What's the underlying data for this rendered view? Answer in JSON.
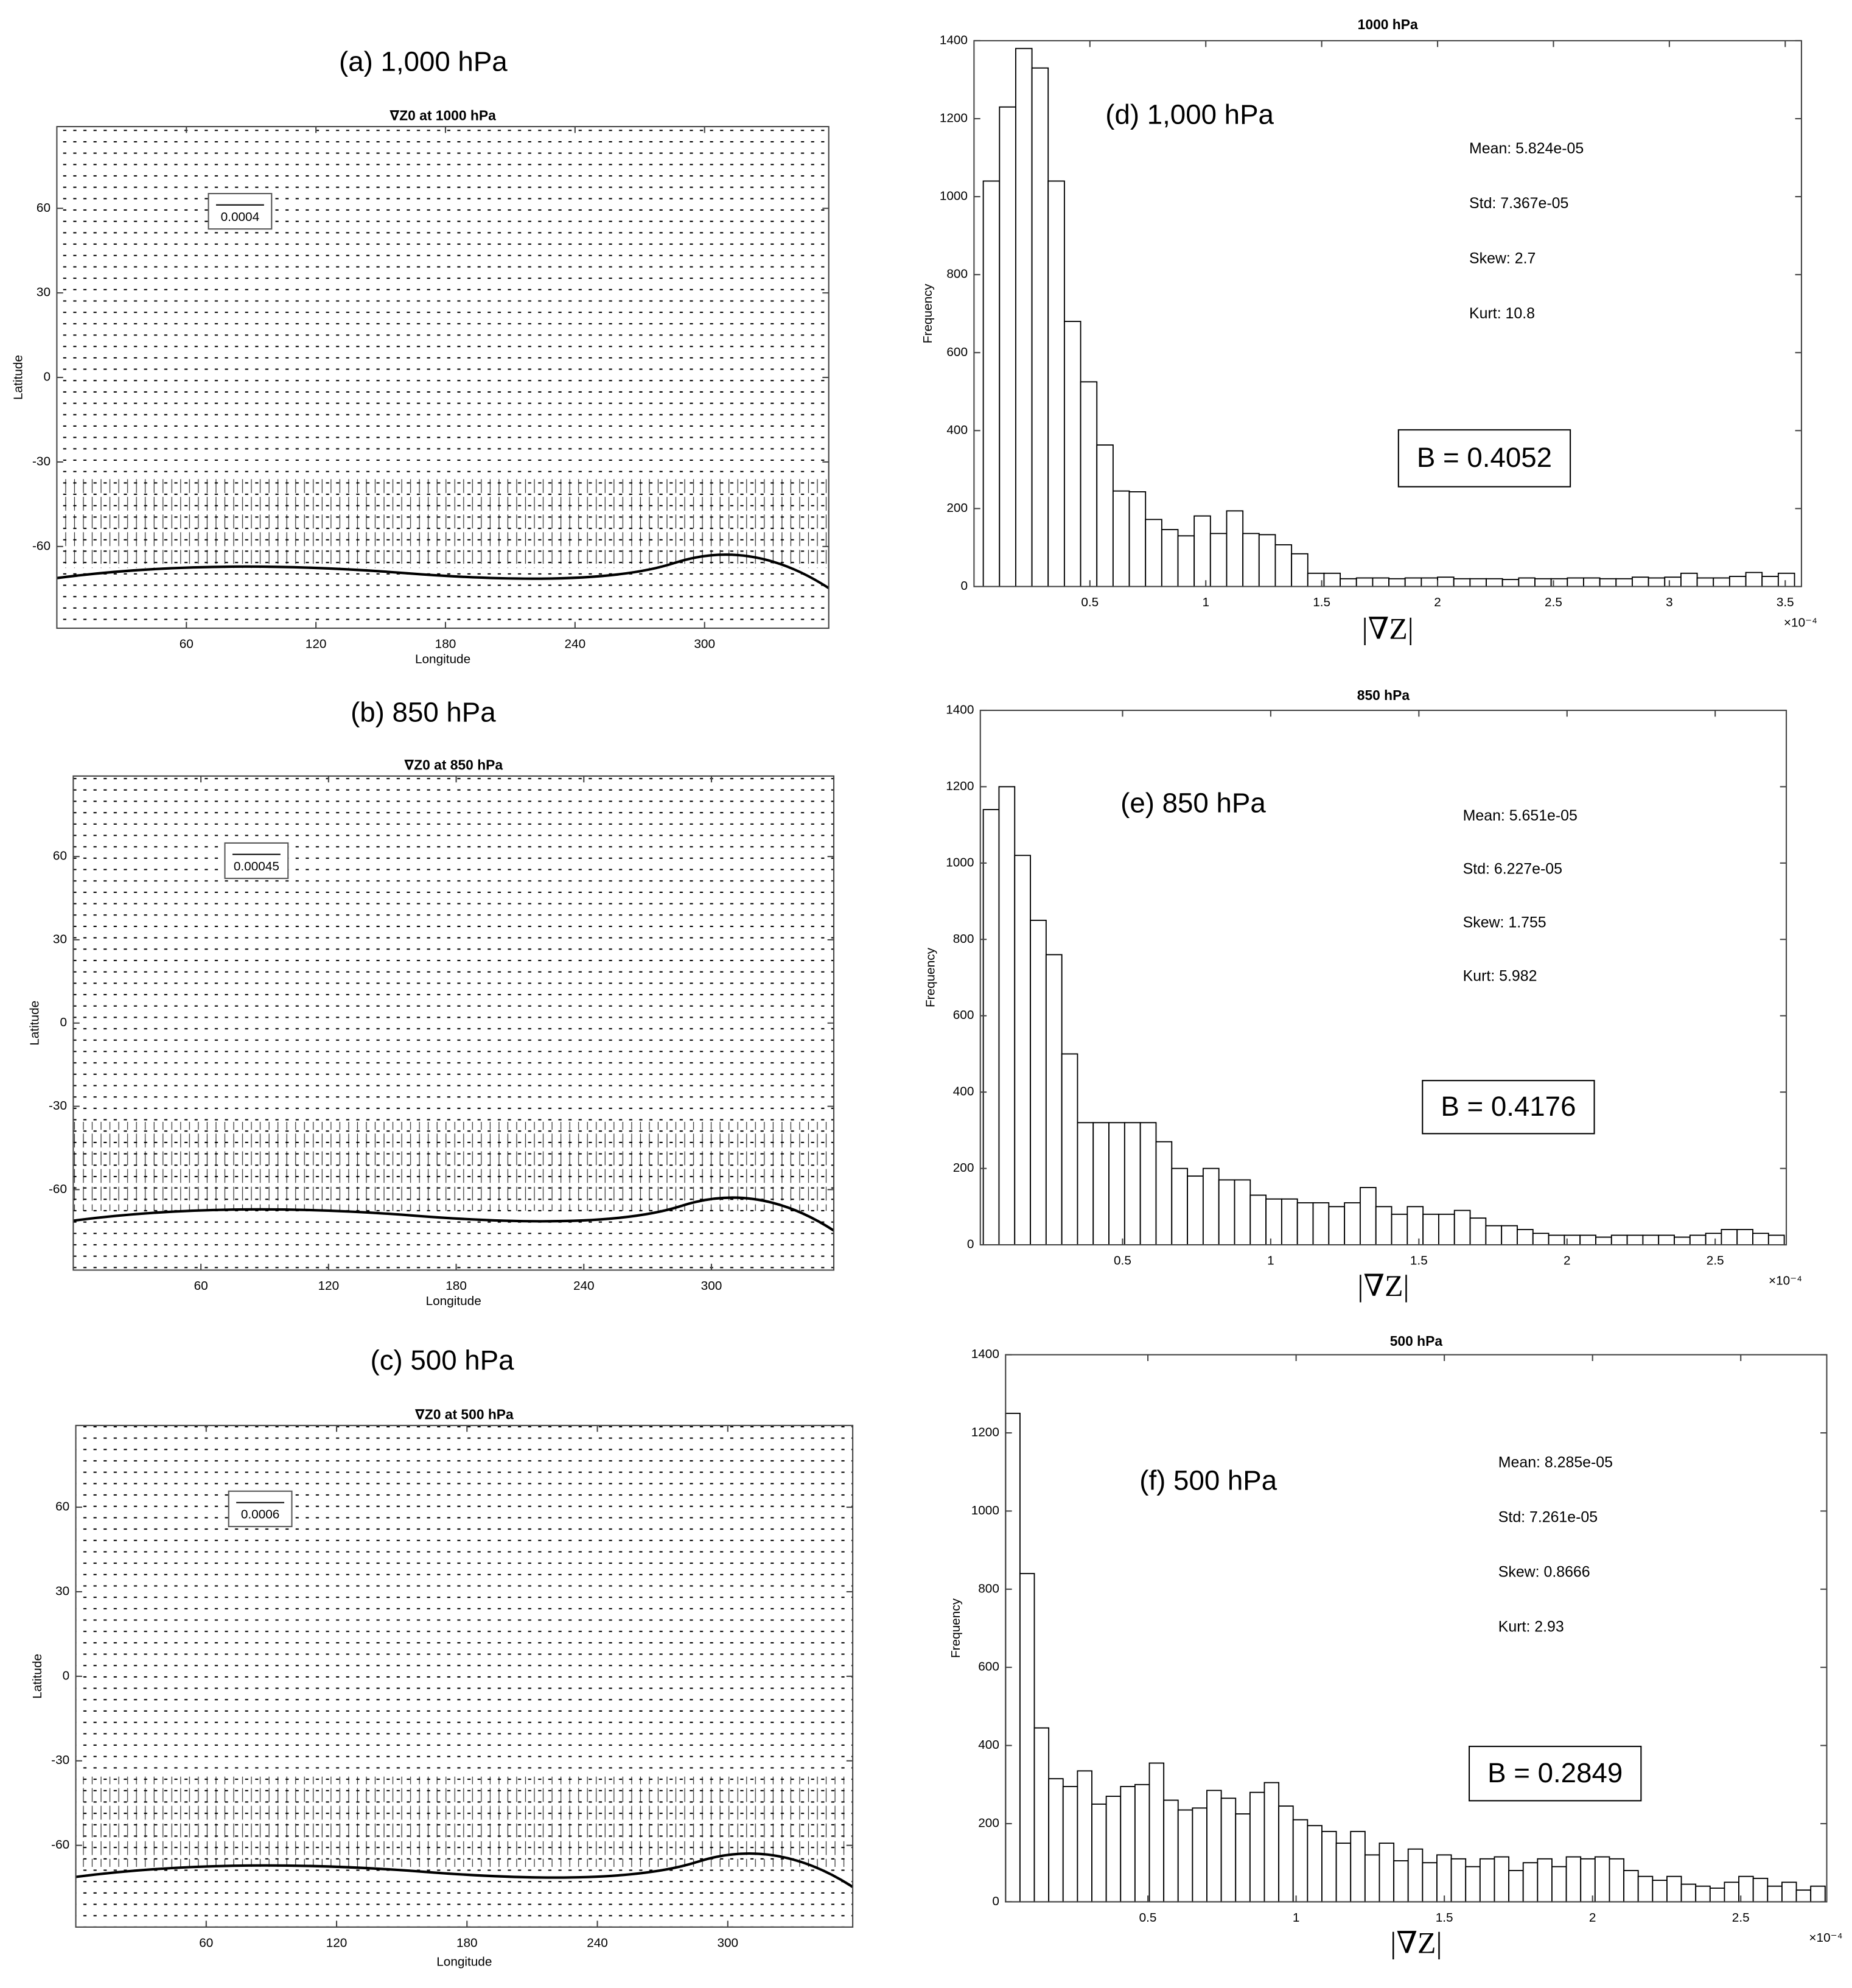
{
  "chart_data": [
    {
      "type": "quiver",
      "panel_label": "(a) 1,000 hPa",
      "title": "∇Z0 at 1000 hPa",
      "xlabel": "Longitude",
      "ylabel": "Latitude",
      "reference_label": "0.0004",
      "xlim": [
        0,
        357.5
      ],
      "xticks": [
        60,
        120,
        180,
        240,
        300
      ],
      "ylim": [
        -89,
        89
      ],
      "yticks": [
        -60,
        -30,
        0,
        30,
        60
      ]
    },
    {
      "type": "quiver",
      "panel_label": "(b)   850 hPa",
      "title": "∇Z0 at 850 hPa",
      "xlabel": "Longitude",
      "ylabel": "Latitude",
      "reference_label": "0.00045",
      "xlim": [
        0,
        357.5
      ],
      "xticks": [
        60,
        120,
        180,
        240,
        300
      ],
      "ylim": [
        -89,
        89
      ],
      "yticks": [
        -60,
        -30,
        0,
        30,
        60
      ]
    },
    {
      "type": "quiver",
      "panel_label": "(c)     500 hPa",
      "title": "∇Z0 at 500 hPa",
      "xlabel": "Longitude",
      "ylabel": "Latitude",
      "reference_label": "0.0006",
      "xlim": [
        0,
        357.5
      ],
      "xticks": [
        60,
        120,
        180,
        240,
        300
      ],
      "ylim": [
        -89,
        89
      ],
      "yticks": [
        -60,
        -30,
        0,
        30,
        60
      ]
    },
    {
      "type": "histogram",
      "title": "1000 hPa",
      "panel_label": "(d)   1,000 hPa",
      "xlabel": "|∇Z|",
      "ylabel": "Frequency",
      "x_multiplier": "×10⁻⁴",
      "stats": [
        "Mean: 5.824e-05",
        "Std: 7.367e-05",
        "Skew: 2.7",
        "Kurt: 10.8"
      ],
      "annotation": "B = 0.4052",
      "xlim": [
        0,
        3.57
      ],
      "xticks": [
        0.5,
        1,
        1.5,
        2,
        2.5,
        3,
        3.5
      ],
      "ylim": [
        0,
        1400
      ],
      "yticks": [
        0,
        200,
        400,
        600,
        800,
        1000,
        1200,
        1400
      ],
      "bins": [
        0.04,
        0.11,
        0.18,
        0.25,
        0.32,
        0.39,
        0.46,
        0.53,
        0.6,
        0.67,
        0.74,
        0.81,
        0.88,
        0.95,
        1.02,
        1.09,
        1.16,
        1.23,
        1.3,
        1.37,
        1.44,
        1.51,
        1.58,
        1.65,
        1.72,
        1.79,
        1.86,
        1.93,
        2,
        2.07,
        2.14,
        2.21,
        2.28,
        2.35,
        2.42,
        2.49,
        2.56,
        2.63,
        2.7,
        2.77,
        2.84,
        2.91,
        2.98,
        3.05,
        3.12,
        3.19,
        3.26,
        3.33,
        3.4,
        3.47,
        3.54
      ],
      "values": [
        1040,
        1230,
        1380,
        1330,
        1040,
        680,
        525,
        363,
        245,
        243,
        172,
        146,
        130,
        181,
        136,
        194,
        136,
        133,
        107,
        84,
        34,
        34,
        20,
        22,
        22,
        20,
        22,
        22,
        24,
        20,
        20,
        20,
        18,
        22,
        20,
        20,
        22,
        22,
        20,
        20,
        24,
        22,
        24,
        34,
        22,
        22,
        26,
        36,
        26,
        34
      ]
    },
    {
      "type": "histogram",
      "title": "850 hPa",
      "panel_label": "(e) 850 hPa",
      "xlabel": "|∇Z|",
      "ylabel": "Frequency",
      "x_multiplier": "×10⁻⁴",
      "stats": [
        "Mean: 5.651e-05",
        "Std: 6.227e-05",
        "Skew: 1.755",
        "Kurt: 5.982"
      ],
      "annotation": "B = 0.4176",
      "xlim": [
        0.02,
        2.74
      ],
      "xticks": [
        0.5,
        1,
        1.5,
        2,
        2.5
      ],
      "ylim": [
        0,
        1400
      ],
      "yticks": [
        0,
        200,
        400,
        600,
        800,
        1000,
        1200,
        1400
      ],
      "bins": [
        0.03,
        0.083,
        0.136,
        0.189,
        0.242,
        0.295,
        0.348,
        0.401,
        0.454,
        0.507,
        0.56,
        0.613,
        0.666,
        0.719,
        0.772,
        0.825,
        0.878,
        0.931,
        0.984,
        1.037,
        1.09,
        1.143,
        1.196,
        1.249,
        1.302,
        1.355,
        1.408,
        1.461,
        1.514,
        1.567,
        1.62,
        1.673,
        1.726,
        1.779,
        1.832,
        1.885,
        1.938,
        1.991,
        2.044,
        2.097,
        2.15,
        2.203,
        2.256,
        2.309,
        2.362,
        2.415,
        2.468,
        2.521,
        2.574,
        2.627,
        2.68,
        2.733
      ],
      "values": [
        1140,
        1200,
        1020,
        850,
        760,
        500,
        320,
        320,
        320,
        320,
        320,
        270,
        200,
        180,
        200,
        170,
        170,
        130,
        120,
        120,
        110,
        110,
        100,
        110,
        150,
        100,
        80,
        100,
        80,
        80,
        90,
        70,
        50,
        50,
        40,
        30,
        25,
        25,
        25,
        20,
        25,
        25,
        25,
        25,
        20,
        25,
        30,
        40,
        40,
        30,
        25
      ]
    },
    {
      "type": "histogram",
      "title": "500 hPa",
      "panel_label": "(f) 500 hPa",
      "xlabel": "|∇Z|",
      "ylabel": "Frequency",
      "x_multiplier": "×10⁻⁴",
      "stats": [
        "Mean: 8.285e-05",
        "Std: 7.261e-05",
        "Skew: 0.8666",
        "Kurt: 2.93"
      ],
      "annotation": "B = 0.2849",
      "xlim": [
        0.02,
        2.79
      ],
      "xticks": [
        0.5,
        1,
        1.5,
        2,
        2.5
      ],
      "ylim": [
        0,
        1400
      ],
      "yticks": [
        0,
        200,
        400,
        600,
        800,
        1000,
        1200,
        1400
      ],
      "bins": [
        0.02,
        0.0685,
        0.117,
        0.1655,
        0.214,
        0.2625,
        0.311,
        0.3595,
        0.408,
        0.4565,
        0.505,
        0.5535,
        0.602,
        0.6505,
        0.699,
        0.7475,
        0.796,
        0.8445,
        0.893,
        0.9415,
        0.99,
        1.0385,
        1.087,
        1.1355,
        1.184,
        1.2325,
        1.281,
        1.3295,
        1.378,
        1.4265,
        1.475,
        1.5235,
        1.572,
        1.6205,
        1.669,
        1.7175,
        1.766,
        1.8145,
        1.863,
        1.9115,
        1.96,
        2.0085,
        2.057,
        2.1055,
        2.154,
        2.2025,
        2.251,
        2.2995,
        2.348,
        2.3965,
        2.445,
        2.4935,
        2.542,
        2.5905,
        2.639,
        2.6875,
        2.736,
        2.7845
      ],
      "values": [
        1250,
        840,
        445,
        315,
        295,
        335,
        250,
        270,
        295,
        300,
        355,
        260,
        235,
        240,
        285,
        265,
        225,
        280,
        305,
        245,
        210,
        195,
        180,
        150,
        180,
        120,
        150,
        105,
        135,
        100,
        120,
        110,
        90,
        110,
        115,
        80,
        100,
        110,
        90,
        115,
        110,
        115,
        110,
        80,
        65,
        55,
        65,
        45,
        40,
        35,
        50,
        65,
        60,
        40,
        50,
        30,
        40
      ]
    }
  ]
}
